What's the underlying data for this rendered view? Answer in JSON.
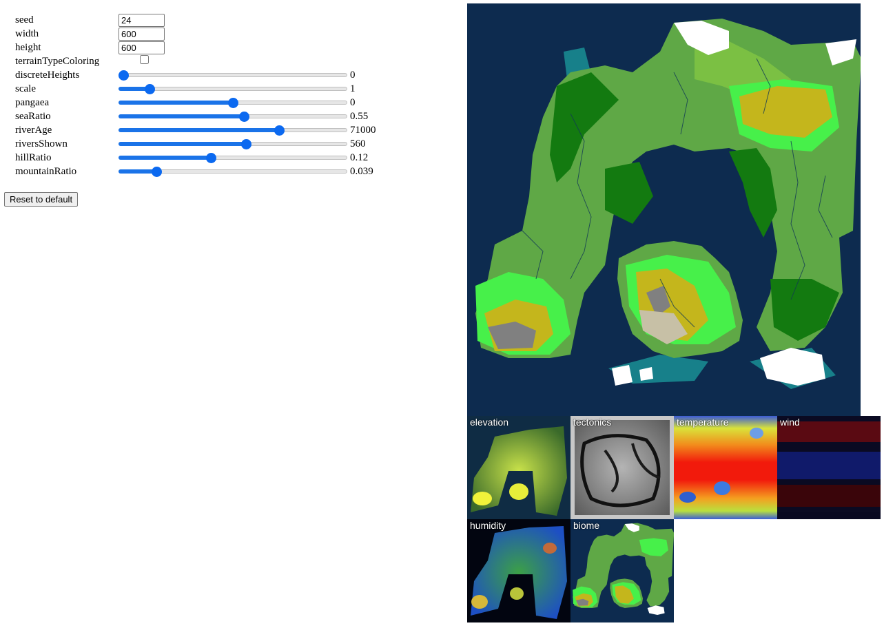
{
  "settings": {
    "seed": {
      "label": "seed",
      "value": "24"
    },
    "width": {
      "label": "width",
      "value": "600"
    },
    "height": {
      "label": "height",
      "value": "600"
    },
    "terrainTypeColoring": {
      "label": "terrainTypeColoring",
      "checked": false
    },
    "sliders": [
      {
        "key": "discreteHeights",
        "label": "discreteHeights",
        "value": "0",
        "fraction": 0.0
      },
      {
        "key": "scale",
        "label": "scale",
        "value": "1",
        "fraction": 0.12
      },
      {
        "key": "pangaea",
        "label": "pangaea",
        "value": "0",
        "fraction": 0.5
      },
      {
        "key": "seaRatio",
        "label": "seaRatio",
        "value": "0.55",
        "fraction": 0.55
      },
      {
        "key": "riverAge",
        "label": "riverAge",
        "value": "71000",
        "fraction": 0.71
      },
      {
        "key": "riversShown",
        "label": "riversShown",
        "value": "560",
        "fraction": 0.56
      },
      {
        "key": "hillRatio",
        "label": "hillRatio",
        "value": "0.12",
        "fraction": 0.4
      },
      {
        "key": "mountainRatio",
        "label": "mountainRatio",
        "value": "0.039",
        "fraction": 0.15
      }
    ]
  },
  "reset_label": "Reset to default",
  "thumbnails": [
    {
      "key": "elevation",
      "label": "elevation"
    },
    {
      "key": "tectonics",
      "label": "tectonics"
    },
    {
      "key": "temperature",
      "label": "temperature"
    },
    {
      "key": "wind",
      "label": "wind"
    },
    {
      "key": "humidity",
      "label": "humidity"
    },
    {
      "key": "biome",
      "label": "biome"
    }
  ],
  "colors": {
    "ocean": "#0d2b4f",
    "forest": "#5fa846",
    "dark_forest": "#137a10",
    "grassland": "#7bc043",
    "bright_green": "#47f04a",
    "desert": "#c4b61c",
    "mountain": "#808080",
    "sand": "#c7c0a6",
    "snow": "#ffffff",
    "teal": "#17808a",
    "slider_accent": "#0b69f0"
  }
}
